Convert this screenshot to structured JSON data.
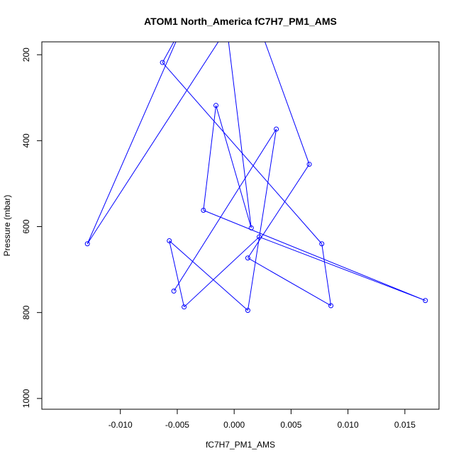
{
  "chart_data": {
    "type": "line",
    "title": "ATOM1 North_America fC7H7_PM1_AMS",
    "xlabel": "fC7H7_PM1_AMS",
    "ylabel": "Pressure (mbar)",
    "xlim": [
      -0.0169,
      0.018
    ],
    "ylim": [
      1025,
      170
    ],
    "y_axis_inverted": true,
    "x_ticks": [
      -0.01,
      -0.005,
      0.0,
      0.005,
      0.01,
      0.015
    ],
    "x_tick_labels": [
      "-0.010",
      "-0.005",
      "0.000",
      "0.005",
      "0.010",
      "0.015"
    ],
    "y_ticks": [
      200,
      400,
      600,
      800,
      1000
    ],
    "y_tick_labels": [
      "200",
      "400",
      "600",
      "800",
      "1000"
    ],
    "grid": false,
    "color": "#0000ff",
    "markers": "open-circle",
    "series": [
      {
        "points": [
          {
            "x": 0.0066,
            "y": 455
          },
          {
            "x": 0.0012,
            "y": 60
          },
          {
            "x": 0.0015,
            "y": 603
          },
          {
            "x": -0.001,
            "y": 60
          },
          {
            "x": -0.0063,
            "y": 218
          },
          {
            "x": 0.0077,
            "y": 640
          },
          {
            "x": 0.0085,
            "y": 784
          },
          {
            "x": 0.0012,
            "y": 673
          },
          {
            "x": 0.0037,
            "y": 373
          },
          {
            "x": 0.0012,
            "y": 795
          },
          {
            "x": -0.0057,
            "y": 633
          },
          {
            "x": -0.0044,
            "y": 787
          },
          {
            "x": 0.0066,
            "y": 455
          }
        ],
        "visible_points": [
          {
            "x": 0.0066,
            "y": 455
          },
          {
            "x": 0.0015,
            "y": 603
          },
          {
            "x": -0.0063,
            "y": 218
          },
          {
            "x": 0.0077,
            "y": 640
          },
          {
            "x": 0.0085,
            "y": 784
          },
          {
            "x": 0.0012,
            "y": 673
          },
          {
            "x": 0.0037,
            "y": 373
          },
          {
            "x": 0.0012,
            "y": 795
          },
          {
            "x": -0.0057,
            "y": 633
          },
          {
            "x": -0.0044,
            "y": 787
          },
          {
            "x": -0.0016,
            "y": 318
          },
          {
            "x": -0.0027,
            "y": 562
          },
          {
            "x": 0.0022,
            "y": 624
          },
          {
            "x": 0.0168,
            "y": 772
          },
          {
            "x": -0.0129,
            "y": 640
          },
          {
            "x": -0.0053,
            "y": 750
          }
        ]
      }
    ]
  }
}
